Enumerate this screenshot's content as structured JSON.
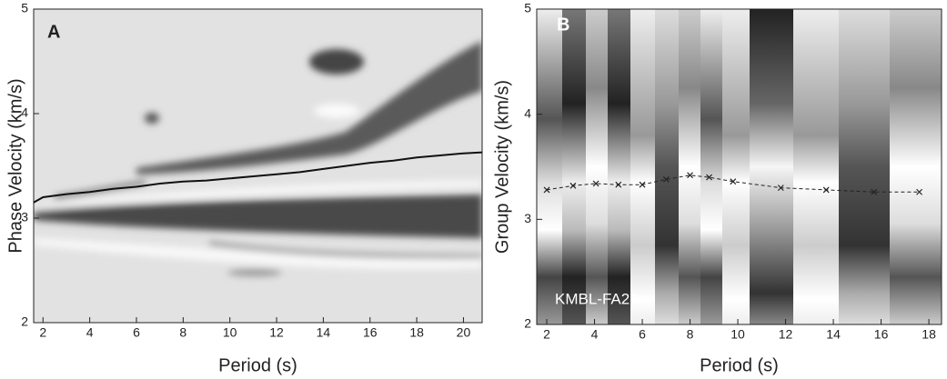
{
  "chart_data": [
    {
      "type": "line",
      "panel_label": "A",
      "xlabel": "Period (s)",
      "ylabel": "Phase Velocity (km/s)",
      "xlim": [
        1.6,
        20.8
      ],
      "ylim": [
        2,
        5
      ],
      "xticks": [
        2,
        4,
        6,
        8,
        10,
        12,
        14,
        16,
        18,
        20
      ],
      "yticks": [
        2,
        3,
        4,
        5
      ],
      "x": [
        1.6,
        2,
        3,
        4,
        5,
        6,
        7,
        8,
        9,
        10,
        11,
        12,
        13,
        14,
        15,
        16,
        17,
        18,
        19,
        20,
        20.8
      ],
      "y": [
        3.15,
        3.2,
        3.23,
        3.25,
        3.28,
        3.3,
        3.33,
        3.35,
        3.36,
        3.38,
        3.4,
        3.42,
        3.44,
        3.47,
        3.5,
        3.53,
        3.55,
        3.58,
        3.6,
        3.62,
        3.63
      ],
      "color": "#111111",
      "line_style": "solid"
    },
    {
      "type": "line",
      "panel_label": "B",
      "annotation": "KMBL-FA22",
      "xlabel": "Period (s)",
      "ylabel": "Group Velocity (km/s)",
      "xlim": [
        1.58,
        18.53
      ],
      "ylim": [
        2,
        5
      ],
      "xticks": [
        2,
        4,
        6,
        8,
        10,
        12,
        14,
        16,
        18
      ],
      "yticks": [
        2,
        3,
        4,
        5
      ],
      "x": [
        2.0,
        3.1,
        4.06,
        5.0,
        6.0,
        7.0,
        8.0,
        8.8,
        9.8,
        11.8,
        13.7,
        15.7,
        17.6
      ],
      "y": [
        3.28,
        3.32,
        3.34,
        3.33,
        3.33,
        3.38,
        3.42,
        3.4,
        3.36,
        3.3,
        3.28,
        3.26,
        3.26
      ],
      "color": "#222222",
      "line_style": "dashed",
      "marker": "x"
    }
  ]
}
